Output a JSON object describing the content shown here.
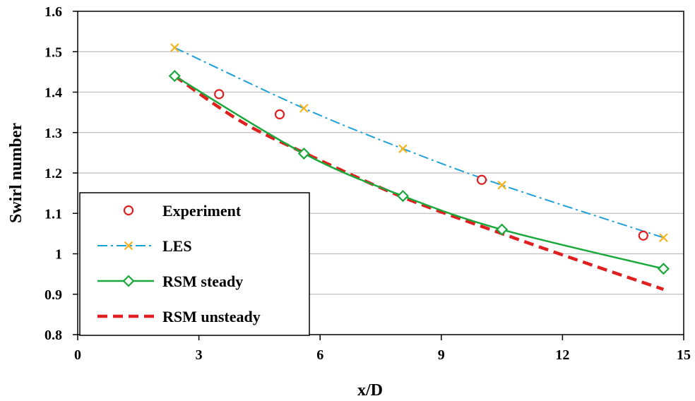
{
  "chart_data": {
    "type": "line",
    "title": "",
    "xlabel": "x/D",
    "ylabel": "Swirl number",
    "xlim": [
      0,
      15
    ],
    "ylim": [
      0.8,
      1.6
    ],
    "x_ticks": [
      0,
      3,
      6,
      9,
      12,
      15
    ],
    "x_tick_labels": [
      "0",
      "3",
      "6",
      "9",
      "12",
      "15"
    ],
    "y_ticks": [
      0.8,
      0.9,
      1.0,
      1.1,
      1.2,
      1.3,
      1.4,
      1.5,
      1.6
    ],
    "y_tick_labels": [
      "0.8",
      "0.9",
      "1",
      "1.1",
      "1.2",
      "1.3",
      "1.4",
      "1.5",
      "1.6"
    ],
    "grid": "horizontal",
    "legend_position": "bottom-left",
    "colors": {
      "experiment": "#e02020",
      "les_line": "#1ea0d8",
      "les_marker": "#f5b21a",
      "rsm_steady": "#1aa83c",
      "rsm_unsteady": "#e02020"
    },
    "series": [
      {
        "name": "Experiment",
        "style": "markers",
        "marker": "circle",
        "x": [
          3.5,
          5.0,
          10.0,
          14.0
        ],
        "y": [
          1.395,
          1.345,
          1.183,
          1.045
        ]
      },
      {
        "name": "LES",
        "style": "dash-dot-markers",
        "marker": "x",
        "x": [
          2.4,
          5.6,
          8.05,
          10.5,
          14.5
        ],
        "y": [
          1.51,
          1.36,
          1.26,
          1.17,
          1.04
        ]
      },
      {
        "name": "RSM steady",
        "style": "solid-markers",
        "marker": "diamond",
        "x": [
          2.4,
          5.6,
          8.05,
          10.5,
          14.5
        ],
        "y": [
          1.44,
          1.248,
          1.143,
          1.06,
          0.963
        ]
      },
      {
        "name": "RSM unsteady",
        "style": "dashed",
        "marker": "none",
        "x": [
          2.4,
          4.0,
          5.6,
          8.05,
          10.5,
          12.5,
          14.5
        ],
        "y": [
          1.44,
          1.33,
          1.25,
          1.14,
          1.05,
          0.98,
          0.912
        ]
      }
    ]
  }
}
